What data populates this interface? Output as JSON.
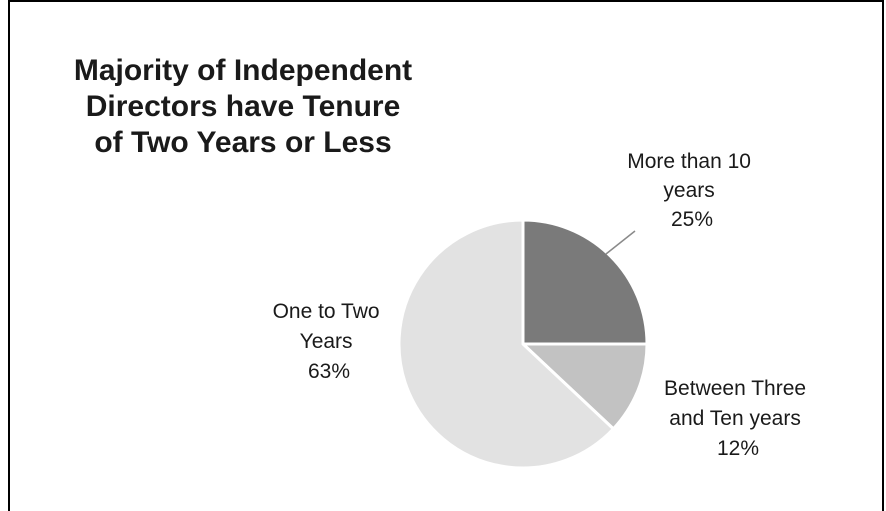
{
  "chart_data": {
    "type": "pie",
    "title_lines": [
      "Majority of Independent",
      "Directors have Tenure",
      "of Two Years or Less"
    ],
    "slices": [
      {
        "label_lines": [
          "More than 10",
          "years"
        ],
        "value": 25,
        "value_label": "25%",
        "color": "#7a7a7a"
      },
      {
        "label_lines": [
          "Between Three",
          "and Ten years"
        ],
        "value": 12,
        "value_label": "12%",
        "color": "#c2c2c2"
      },
      {
        "label_lines": [
          "One to Two",
          "Years"
        ],
        "value": 63,
        "value_label": "63%",
        "color": "#e2e2e2"
      }
    ],
    "start_angle_deg": 0,
    "direction": "clockwise",
    "legend": "none"
  }
}
